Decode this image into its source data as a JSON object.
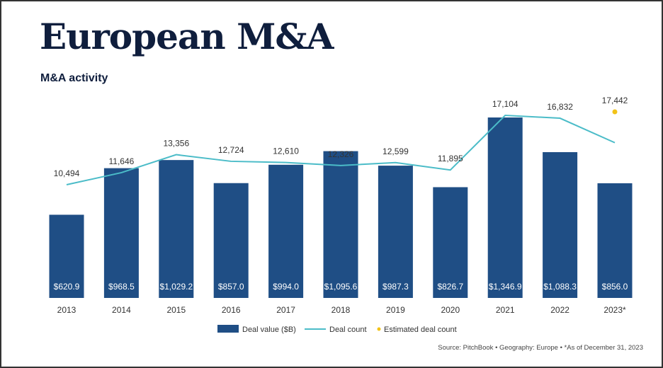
{
  "page": {
    "title": "European M&A",
    "subtitle": "M&A activity",
    "source": "Source: PitchBook  •  Geography: Europe  •  *As of December 31, 2023"
  },
  "colors": {
    "bar": "#1f4e85",
    "line": "#4bbcc8",
    "estimate": "#f2c318",
    "title": "#0f1e3d"
  },
  "chart_data": {
    "type": "bar",
    "categories": [
      "2013",
      "2014",
      "2015",
      "2016",
      "2017",
      "2018",
      "2019",
      "2020",
      "2021",
      "2022",
      "2023*"
    ],
    "series": [
      {
        "name": "Deal value ($B)",
        "type": "bar",
        "values": [
          620.9,
          968.5,
          1029.2,
          857.0,
          994.0,
          1095.6,
          987.3,
          826.7,
          1346.9,
          1088.3,
          856.0
        ],
        "labels": [
          "$620.9",
          "$968.5",
          "$1,029.2",
          "$857.0",
          "$994.0",
          "$1,095.6",
          "$987.3",
          "$826.7",
          "$1,346.9",
          "$1,088.3",
          "$856.0"
        ]
      },
      {
        "name": "Deal count",
        "type": "line",
        "values": [
          10494,
          11646,
          13356,
          12724,
          12610,
          12326,
          12599,
          11895,
          17104,
          16832,
          14500
        ],
        "labels": [
          "10,494",
          "11,646",
          "13,356",
          "12,724",
          "12,610",
          "12,326",
          "12,599",
          "11,895",
          "17,104",
          "16,832",
          ""
        ]
      },
      {
        "name": "Estimated deal count",
        "type": "point",
        "values": [
          null,
          null,
          null,
          null,
          null,
          null,
          null,
          null,
          null,
          null,
          17442
        ],
        "labels": [
          "",
          "",
          "",
          "",
          "",
          "",
          "",
          "",
          "",
          "",
          "17,442"
        ]
      }
    ],
    "legend": [
      "Deal value ($B)",
      "Deal count",
      "Estimated deal count"
    ],
    "legend_position": "bottom",
    "grid": false
  }
}
